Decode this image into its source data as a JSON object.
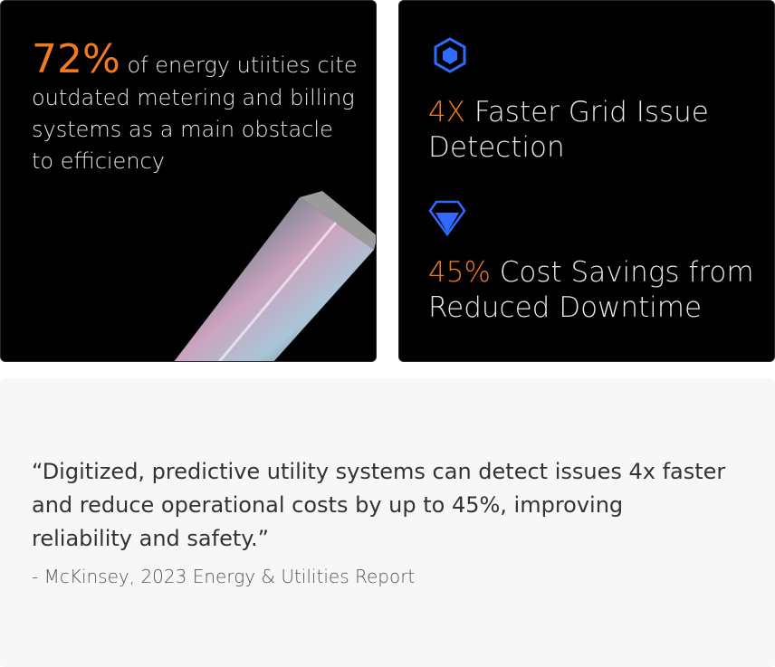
{
  "stat_card": {
    "stat": "72%",
    "text": "of energy utiities cite outdated metering and billing systems as a main obstacle to efficiency"
  },
  "highlights": [
    {
      "stat": "4X",
      "text": "Faster Grid Issue Detection"
    },
    {
      "stat": "45%",
      "text": "Cost Savings from Reduced Downtime"
    }
  ],
  "quote": {
    "text": "“Digitized, predictive utility systems can detect issues 4x faster and reduce operational costs by up to 45%, improving reliability and safety.”",
    "source": "- McKinsey, 2023 Energy & Utilities Report"
  }
}
